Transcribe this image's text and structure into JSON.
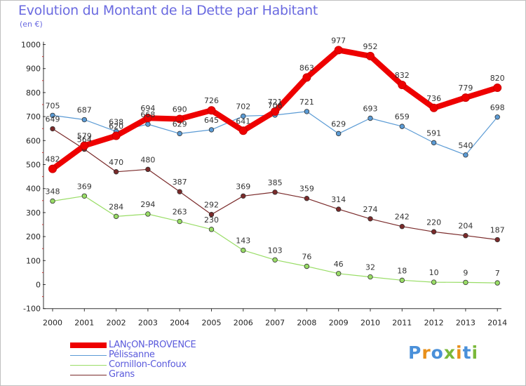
{
  "chart_data": {
    "type": "line",
    "title": "Evolution du Montant de la Dette par Habitant",
    "unit": "(en €)",
    "ylim": [
      -100,
      1000
    ],
    "yticks": [
      -100,
      0,
      100,
      200,
      300,
      400,
      500,
      600,
      700,
      800,
      900,
      1000
    ],
    "x": [
      "2000",
      "2001",
      "2002",
      "2003",
      "2004",
      "2005",
      "2006",
      "2007",
      "2008",
      "2009",
      "2010",
      "2011",
      "2012",
      "2013",
      "2014"
    ],
    "grid": false,
    "legend_position": "bottom-left",
    "series": [
      {
        "name": "LANçON-PROVENCE",
        "color": "#ee0000",
        "values": [
          482,
          579,
          620,
          694,
          690,
          726,
          641,
          721,
          863,
          977,
          952,
          832,
          736,
          779,
          820
        ]
      },
      {
        "name": "Pélissanne",
        "color": "#5b9bd5",
        "values": [
          705,
          687,
          638,
          668,
          629,
          645,
          702,
          706,
          721,
          629,
          693,
          659,
          591,
          540,
          698
        ]
      },
      {
        "name": "Cornillon-Confoux",
        "color": "#99dd66",
        "values": [
          348,
          369,
          284,
          294,
          263,
          230,
          143,
          103,
          76,
          46,
          32,
          18,
          10,
          9,
          7
        ]
      },
      {
        "name": "Grans",
        "color": "#7a2a2a",
        "values": [
          649,
          564,
          470,
          480,
          387,
          292,
          369,
          385,
          359,
          314,
          274,
          242,
          220,
          204,
          187
        ]
      }
    ]
  },
  "logo": {
    "text": "Proxiti",
    "colors": [
      "#4a90d9",
      "#e8901a",
      "#4a90d9",
      "#7ab83a",
      "#e8901a",
      "#4a90d9",
      "#7ab83a"
    ]
  }
}
